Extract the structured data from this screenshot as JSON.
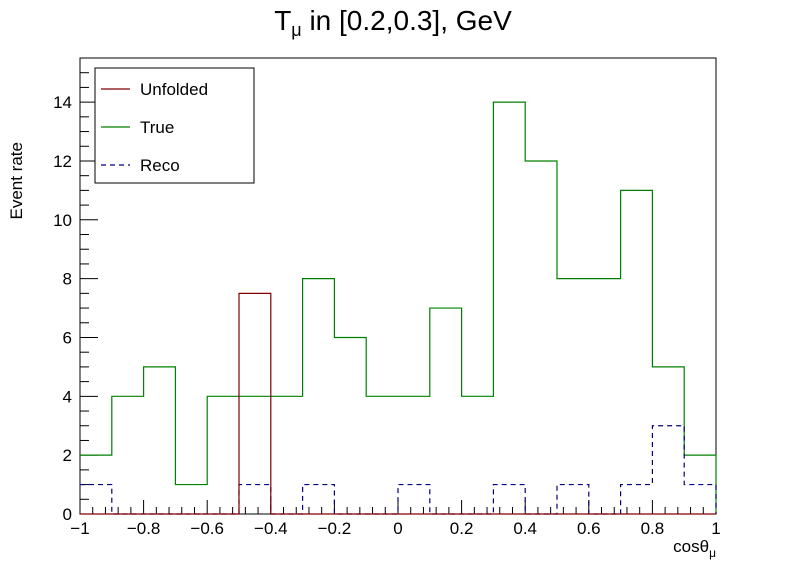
{
  "chart_data": {
    "type": "histogram",
    "title_main": "T",
    "title_sub": "μ",
    "title_rest": " in [0.2,0.3], GeV",
    "xlabel_main": "cosθ",
    "xlabel_sub": "μ",
    "ylabel": "Event rate",
    "xlim": [
      -1,
      1
    ],
    "ylim": [
      0,
      15.5
    ],
    "x_ticks": [
      -1,
      -0.8,
      -0.6,
      -0.4,
      -0.2,
      0,
      0.2,
      0.4,
      0.6,
      0.8,
      1
    ],
    "x_tick_labels": [
      "−1",
      "−0.8",
      "−0.6",
      "−0.4",
      "−0.2",
      "0",
      "0.2",
      "0.4",
      "0.6",
      "0.8",
      "1"
    ],
    "y_ticks": [
      0,
      2,
      4,
      6,
      8,
      10,
      12,
      14
    ],
    "y_tick_labels": [
      "0",
      "2",
      "4",
      "6",
      "8",
      "10",
      "12",
      "14"
    ],
    "bin_edges": [
      -1.0,
      -0.9,
      -0.8,
      -0.7,
      -0.6,
      -0.5,
      -0.4,
      -0.3,
      -0.2,
      -0.1,
      0.0,
      0.1,
      0.2,
      0.3,
      0.4,
      0.5,
      0.6,
      0.7,
      0.8,
      0.9,
      1.0
    ],
    "legend_position": "top-left",
    "series": [
      {
        "name": "Unfolded",
        "color": "#800000",
        "style": "solid",
        "values": [
          0,
          0,
          0,
          0,
          0,
          7.5,
          0,
          0,
          0,
          0,
          0,
          0,
          0,
          0,
          0,
          0,
          0,
          0,
          0,
          0
        ]
      },
      {
        "name": "True",
        "color": "#008000",
        "style": "solid",
        "values": [
          2,
          4,
          5,
          1,
          4,
          4,
          4,
          8,
          6,
          4,
          4,
          7,
          4,
          14,
          12,
          8,
          8,
          11,
          5,
          2
        ]
      },
      {
        "name": "Reco",
        "color": "#000080",
        "style": "dashed",
        "values": [
          1,
          0,
          0,
          0,
          0,
          1,
          0,
          1,
          0,
          0,
          1,
          0,
          0,
          1,
          0,
          1,
          0,
          1,
          3,
          1
        ]
      }
    ]
  }
}
